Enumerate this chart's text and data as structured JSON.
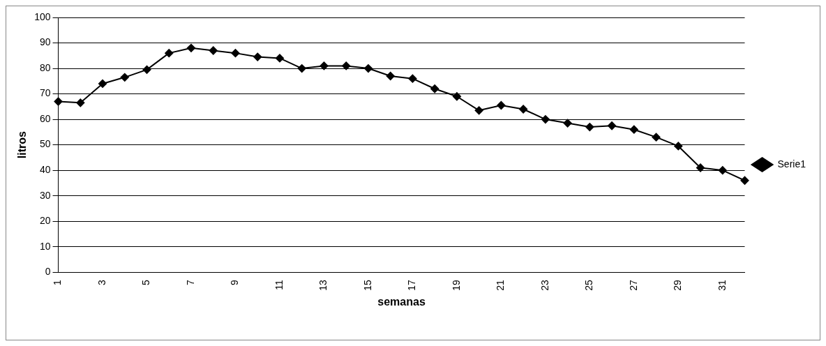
{
  "chart_data": {
    "type": "line",
    "xlabel": "semanas",
    "ylabel": "litros",
    "categories": [
      "1",
      null,
      "3",
      null,
      "5",
      null,
      "7",
      null,
      "9",
      null,
      "11",
      null,
      "13",
      null,
      "15",
      null,
      "17",
      null,
      "19",
      null,
      "21",
      null,
      "23",
      null,
      "25",
      null,
      "27",
      null,
      "29",
      null,
      "31",
      null
    ],
    "series": [
      {
        "name": "Serie1",
        "color": "#000000",
        "values": [
          67,
          66.5,
          74,
          76.5,
          79.5,
          86,
          88,
          87,
          86,
          84.5,
          84,
          80,
          81,
          81,
          80,
          77,
          76,
          72,
          69,
          63.5,
          65.5,
          64,
          60,
          58.5,
          57,
          57.5,
          56,
          53,
          49.5,
          41,
          40,
          36
        ]
      }
    ],
    "ylim": [
      0,
      100
    ],
    "yticks": [
      0,
      10,
      20,
      30,
      40,
      50,
      60,
      70,
      80,
      90,
      100
    ],
    "grid": "y",
    "legend": "right",
    "marker": "diamond",
    "line_style": "solid"
  }
}
